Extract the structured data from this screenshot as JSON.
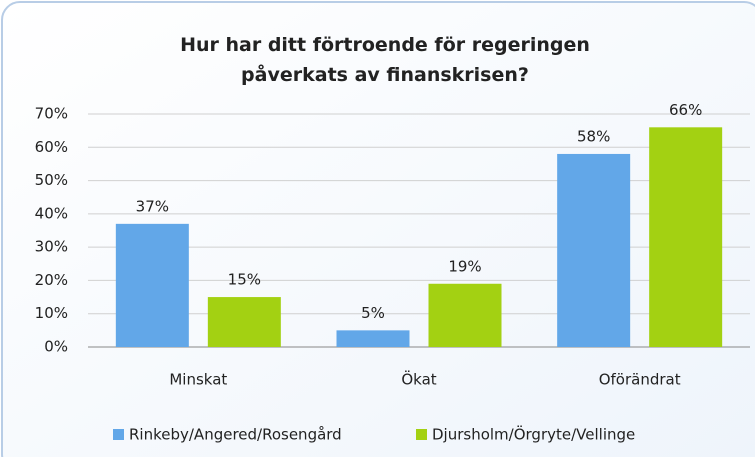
{
  "chart_data": {
    "type": "bar",
    "title": "Hur har ditt förtroende för regeringen påverkats av finanskrisen?",
    "categories": [
      "Minskat",
      "Ökat",
      "Oförändrat"
    ],
    "series": [
      {
        "name": "Rinkeby/Angered/Rosengård",
        "color": "#62a7e8",
        "values": [
          37,
          5,
          58
        ],
        "value_labels": [
          "37%",
          "5%",
          "58%"
        ]
      },
      {
        "name": "Djursholm/Örgryte/Vellinge",
        "color": "#a3d112",
        "values": [
          15,
          19,
          66
        ],
        "value_labels": [
          "15%",
          "19%",
          "66%"
        ]
      }
    ],
    "ylim": [
      0,
      70
    ],
    "yticks": [
      {
        "value": 0,
        "label": "0%"
      },
      {
        "value": 10,
        "label": "10%"
      },
      {
        "value": 20,
        "label": "20%"
      },
      {
        "value": 30,
        "label": "30%"
      },
      {
        "value": 40,
        "label": "40%"
      },
      {
        "value": 50,
        "label": "50%"
      },
      {
        "value": 60,
        "label": "60%"
      },
      {
        "value": 70,
        "label": "70%"
      }
    ],
    "grid": true,
    "legend": "bottom"
  }
}
